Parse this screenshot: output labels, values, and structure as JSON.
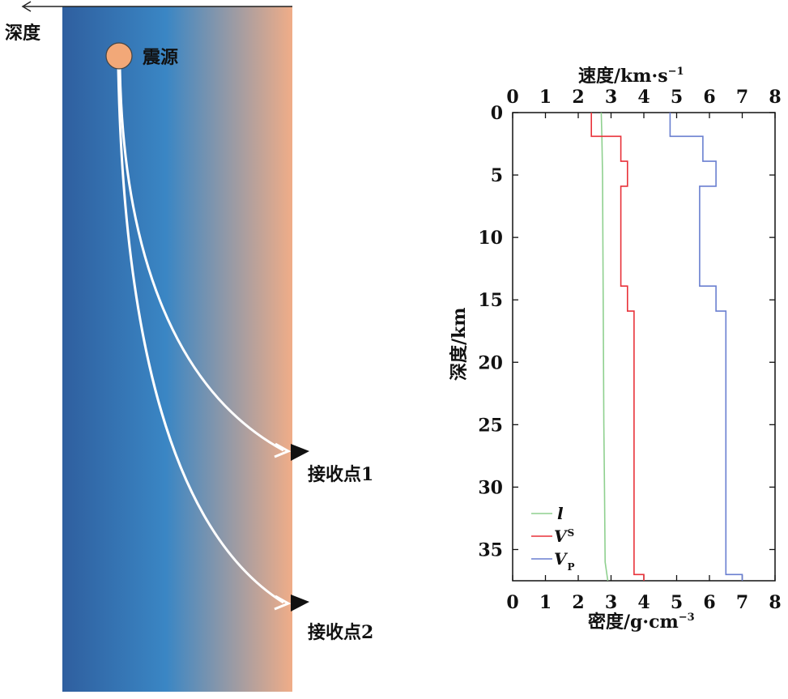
{
  "diagram": {
    "depth_arrow_label": "深度",
    "source_label": "震源",
    "receiver1_label": "接收点1",
    "receiver2_label": "接收点2",
    "colors": {
      "gradient_left": "#2f5f9f",
      "gradient_mid": "#3a86c4",
      "gradient_right": "#f0ad88",
      "source_fill": "#f2a878",
      "ray": "#ffffff",
      "receiver": "#111111"
    }
  },
  "chart_data": {
    "type": "line",
    "title_top": "速度/km·s",
    "title_top_sup": "−1",
    "xlabel_bottom": "密度/g·cm",
    "xlabel_bottom_sup": "−3",
    "ylabel": "深度/km",
    "xlim": [
      0,
      8
    ],
    "ylim": [
      0,
      37.5
    ],
    "x_ticks": [
      "0",
      "1",
      "2",
      "3",
      "4",
      "5",
      "6",
      "7",
      "8"
    ],
    "y_ticks": [
      "0",
      "5",
      "10",
      "15",
      "20",
      "25",
      "30",
      "35"
    ],
    "y_tick_values": [
      0,
      5,
      10,
      15,
      20,
      25,
      30,
      35
    ],
    "series": [
      {
        "name": "l",
        "color": "#8fd08f",
        "x": [
          2.7,
          2.72,
          2.74,
          2.75,
          2.76,
          2.77,
          2.78,
          2.8,
          2.82,
          2.9
        ],
        "y": [
          0,
          2,
          5,
          10,
          15,
          20,
          25,
          30,
          36,
          37.5
        ]
      },
      {
        "name": "V",
        "sub": "S",
        "color": "#e8323a",
        "x": [
          2.4,
          2.4,
          3.3,
          3.3,
          3.5,
          3.5,
          3.3,
          3.3,
          3.5,
          3.5,
          3.7,
          3.7,
          4.0,
          4.0
        ],
        "y": [
          0,
          1.9,
          1.9,
          3.9,
          3.9,
          5.9,
          5.9,
          13.9,
          13.9,
          15.9,
          15.9,
          37.0,
          37.0,
          37.5
        ]
      },
      {
        "name": "V",
        "sub": "P",
        "color": "#6a7fd0",
        "x": [
          4.8,
          4.8,
          5.8,
          5.8,
          6.2,
          6.2,
          5.7,
          5.7,
          6.2,
          6.2,
          6.5,
          6.5,
          7.0,
          7.0
        ],
        "y": [
          0,
          1.9,
          1.9,
          3.9,
          3.9,
          5.9,
          5.9,
          13.9,
          13.9,
          15.9,
          15.9,
          37.0,
          37.0,
          37.5
        ]
      }
    ],
    "legend_position": "bottom-left",
    "grid": false
  }
}
